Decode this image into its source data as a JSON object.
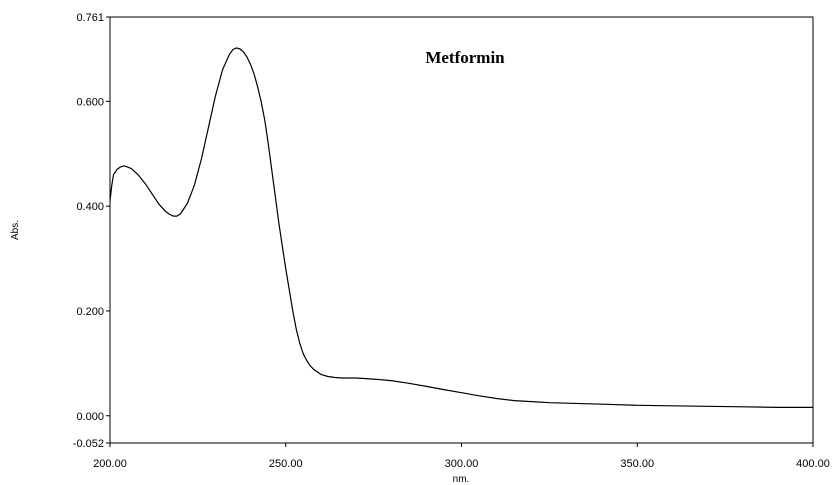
{
  "chart_data": {
    "type": "line",
    "title": "Metformin",
    "xlabel": "nm.",
    "ylabel": "Abs.",
    "xlim": [
      200.0,
      400.0
    ],
    "ylim": [
      -0.052,
      0.761
    ],
    "x_ticks": [
      "200.00",
      "250.00",
      "300.00",
      "350.00",
      "400.00"
    ],
    "y_ticks": [
      "0.761",
      "0.600",
      "0.400",
      "0.200",
      "0.000",
      "-0.052"
    ],
    "grid": false,
    "legend": "none",
    "line_color": "#000000",
    "series": [
      {
        "x": [
          200.0,
          200.5,
          201.0,
          202.0,
          203.0,
          204.0,
          206.0,
          208.0,
          210.0,
          212.0,
          214.0,
          216.0,
          217.0,
          218.0,
          219.0,
          220.0,
          222.0,
          224.0,
          226.0,
          228.0,
          230.0,
          232.0,
          234.0,
          235.0,
          236.0,
          237.0,
          238.0,
          239.0,
          240.0,
          241.0,
          242.0,
          243.0,
          244.0,
          245.0,
          246.0,
          247.0,
          248.0,
          249.0,
          250.0,
          251.0,
          252.0,
          253.0,
          254.0,
          255.0,
          256.0,
          257.0,
          258.0,
          260.0,
          262.0,
          264.0,
          266.0,
          268.0,
          270.0,
          275.0,
          280.0,
          285.0,
          290.0,
          295.0,
          300.0,
          305.0,
          310.0,
          315.0,
          320.0,
          325.0,
          330.0,
          340.0,
          350.0,
          360.0,
          370.0,
          380.0,
          390.0,
          400.0
        ],
        "y": [
          0.41,
          0.44,
          0.46,
          0.47,
          0.475,
          0.477,
          0.472,
          0.46,
          0.443,
          0.423,
          0.403,
          0.389,
          0.384,
          0.381,
          0.381,
          0.385,
          0.405,
          0.44,
          0.49,
          0.55,
          0.61,
          0.66,
          0.69,
          0.699,
          0.702,
          0.7,
          0.694,
          0.684,
          0.67,
          0.652,
          0.628,
          0.6,
          0.565,
          0.52,
          0.47,
          0.42,
          0.37,
          0.325,
          0.28,
          0.24,
          0.2,
          0.165,
          0.138,
          0.118,
          0.105,
          0.095,
          0.088,
          0.079,
          0.075,
          0.073,
          0.072,
          0.072,
          0.072,
          0.07,
          0.067,
          0.062,
          0.056,
          0.05,
          0.044,
          0.038,
          0.033,
          0.029,
          0.027,
          0.025,
          0.024,
          0.022,
          0.02,
          0.019,
          0.018,
          0.017,
          0.016,
          0.016
        ]
      }
    ]
  }
}
